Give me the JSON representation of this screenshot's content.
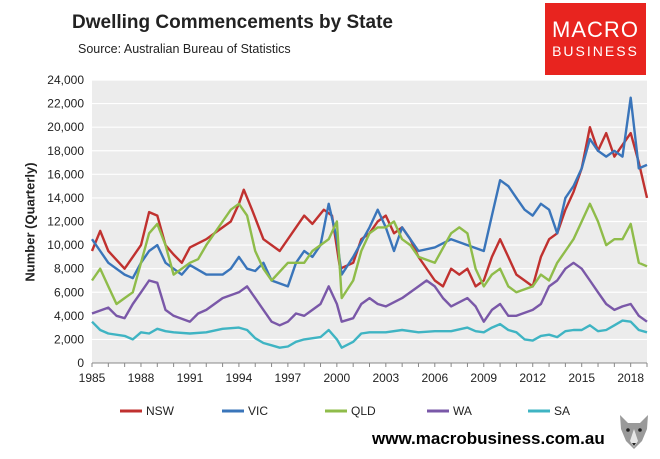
{
  "chart_data": {
    "type": "line",
    "title": "Dwelling Commencements by State",
    "subtitle": "Source:  Australian Bureau of Statistics",
    "ylabel": "Number (Quarterly)",
    "xlabel": "",
    "xlim": [
      1985,
      2019
    ],
    "ylim": [
      0,
      24000
    ],
    "x_ticks": [
      "1985",
      "1988",
      "1991",
      "1994",
      "1997",
      "2000",
      "2003",
      "2006",
      "2009",
      "2012",
      "2015",
      "2018"
    ],
    "y_ticks": [
      "0",
      "2,000",
      "4,000",
      "6,000",
      "8,000",
      "10,000",
      "12,000",
      "14,000",
      "16,000",
      "18,000",
      "20,000",
      "22,000",
      "24,000"
    ],
    "grid": true,
    "legend_position": "bottom",
    "series": [
      {
        "name": "NSW",
        "color": "#c0312f",
        "points": [
          [
            1985,
            9500
          ],
          [
            1985.5,
            11200
          ],
          [
            1986,
            9500
          ],
          [
            1987,
            8000
          ],
          [
            1988,
            10000
          ],
          [
            1988.5,
            12800
          ],
          [
            1989,
            12500
          ],
          [
            1989.5,
            10000
          ],
          [
            1990,
            9200
          ],
          [
            1990.5,
            8500
          ],
          [
            1991,
            9800
          ],
          [
            1992,
            10500
          ],
          [
            1993,
            11500
          ],
          [
            1993.5,
            12000
          ],
          [
            1994,
            13500
          ],
          [
            1994.3,
            14700
          ],
          [
            1994.8,
            13000
          ],
          [
            1995.5,
            10500
          ],
          [
            1996.5,
            9500
          ],
          [
            1997.5,
            11500
          ],
          [
            1998,
            12500
          ],
          [
            1998.5,
            11800
          ],
          [
            1999.2,
            13000
          ],
          [
            1999.7,
            12500
          ],
          [
            2000.2,
            8000
          ],
          [
            2001,
            8500
          ],
          [
            2001.5,
            10500
          ],
          [
            2002,
            11000
          ],
          [
            2002.5,
            12000
          ],
          [
            2003,
            12500
          ],
          [
            2003.5,
            11000
          ],
          [
            2004,
            11500
          ],
          [
            2004.5,
            10500
          ],
          [
            2005,
            9000
          ],
          [
            2006,
            7000
          ],
          [
            2006.5,
            6500
          ],
          [
            2007,
            8000
          ],
          [
            2007.5,
            7500
          ],
          [
            2008,
            8000
          ],
          [
            2008.5,
            6500
          ],
          [
            2009,
            7000
          ],
          [
            2009.5,
            9000
          ],
          [
            2010,
            10500
          ],
          [
            2010.5,
            9000
          ],
          [
            2011,
            7500
          ],
          [
            2011.5,
            7000
          ],
          [
            2012,
            6500
          ],
          [
            2012.5,
            9000
          ],
          [
            2013,
            10500
          ],
          [
            2013.5,
            11000
          ],
          [
            2014,
            13000
          ],
          [
            2014.5,
            14500
          ],
          [
            2015,
            16500
          ],
          [
            2015.5,
            20000
          ],
          [
            2016,
            18000
          ],
          [
            2016.5,
            19500
          ],
          [
            2017,
            17500
          ],
          [
            2017.5,
            18500
          ],
          [
            2018,
            19500
          ],
          [
            2018.5,
            17000
          ],
          [
            2019,
            14000
          ]
        ]
      },
      {
        "name": "VIC",
        "color": "#3a75ba",
        "points": [
          [
            1985,
            10500
          ],
          [
            1985.5,
            9500
          ],
          [
            1986,
            8500
          ],
          [
            1987,
            7500
          ],
          [
            1987.5,
            7200
          ],
          [
            1988,
            8500
          ],
          [
            1988.5,
            9500
          ],
          [
            1989,
            10000
          ],
          [
            1989.5,
            8500
          ],
          [
            1990,
            8000
          ],
          [
            1990.5,
            7500
          ],
          [
            1991,
            8300
          ],
          [
            1992,
            7500
          ],
          [
            1993,
            7500
          ],
          [
            1993.5,
            8000
          ],
          [
            1994,
            9000
          ],
          [
            1994.5,
            8000
          ],
          [
            1995,
            7800
          ],
          [
            1995.5,
            8500
          ],
          [
            1996,
            7000
          ],
          [
            1997,
            6500
          ],
          [
            1997.5,
            8500
          ],
          [
            1998,
            9500
          ],
          [
            1998.5,
            9000
          ],
          [
            1999,
            10000
          ],
          [
            1999.5,
            13500
          ],
          [
            2000,
            10500
          ],
          [
            2000.3,
            7500
          ],
          [
            2001,
            9000
          ],
          [
            2002,
            11500
          ],
          [
            2002.5,
            13000
          ],
          [
            2003,
            11500
          ],
          [
            2003.5,
            9500
          ],
          [
            2004,
            11500
          ],
          [
            2004.5,
            10500
          ],
          [
            2005,
            9500
          ],
          [
            2006,
            9800
          ],
          [
            2007,
            10500
          ],
          [
            2008,
            10000
          ],
          [
            2009,
            9500
          ],
          [
            2009.5,
            12500
          ],
          [
            2010,
            15500
          ],
          [
            2010.5,
            15000
          ],
          [
            2011,
            14000
          ],
          [
            2011.5,
            13000
          ],
          [
            2012,
            12500
          ],
          [
            2012.5,
            13500
          ],
          [
            2013,
            13000
          ],
          [
            2013.5,
            11000
          ],
          [
            2014,
            14000
          ],
          [
            2014.5,
            15000
          ],
          [
            2015,
            16500
          ],
          [
            2015.5,
            19000
          ],
          [
            2016,
            18000
          ],
          [
            2016.5,
            17500
          ],
          [
            2017,
            18000
          ],
          [
            2017.5,
            17500
          ],
          [
            2018,
            22500
          ],
          [
            2018.5,
            16500
          ],
          [
            2019,
            16800
          ]
        ]
      },
      {
        "name": "QLD",
        "color": "#8fbc4a",
        "points": [
          [
            1985,
            7000
          ],
          [
            1985.5,
            8000
          ],
          [
            1986,
            6500
          ],
          [
            1986.5,
            5000
          ],
          [
            1987,
            5500
          ],
          [
            1987.5,
            6000
          ],
          [
            1988,
            8500
          ],
          [
            1988.5,
            11000
          ],
          [
            1989,
            11800
          ],
          [
            1989.5,
            10000
          ],
          [
            1990,
            7500
          ],
          [
            1990.5,
            8000
          ],
          [
            1991,
            8500
          ],
          [
            1991.5,
            8800
          ],
          [
            1992,
            10000
          ],
          [
            1993,
            12000
          ],
          [
            1993.5,
            13000
          ],
          [
            1994,
            13500
          ],
          [
            1994.5,
            12500
          ],
          [
            1995,
            9500
          ],
          [
            1995.5,
            8000
          ],
          [
            1996,
            7000
          ],
          [
            1997,
            8500
          ],
          [
            1998,
            8500
          ],
          [
            1998.5,
            9500
          ],
          [
            1999,
            10000
          ],
          [
            1999.5,
            10500
          ],
          [
            2000,
            12000
          ],
          [
            2000.3,
            5500
          ],
          [
            2001,
            7000
          ],
          [
            2001.5,
            9500
          ],
          [
            2002,
            11000
          ],
          [
            2002.5,
            11500
          ],
          [
            2003,
            11500
          ],
          [
            2003.5,
            12000
          ],
          [
            2004,
            10500
          ],
          [
            2004.5,
            10000
          ],
          [
            2005,
            9000
          ],
          [
            2006,
            8500
          ],
          [
            2007,
            11000
          ],
          [
            2007.5,
            11500
          ],
          [
            2008,
            11000
          ],
          [
            2008.5,
            8000
          ],
          [
            2009,
            6500
          ],
          [
            2009.5,
            7500
          ],
          [
            2010,
            8000
          ],
          [
            2010.5,
            6500
          ],
          [
            2011,
            6000
          ],
          [
            2012,
            6500
          ],
          [
            2012.5,
            7500
          ],
          [
            2013,
            7000
          ],
          [
            2013.5,
            8500
          ],
          [
            2014,
            9500
          ],
          [
            2014.5,
            10500
          ],
          [
            2015,
            12000
          ],
          [
            2015.5,
            13500
          ],
          [
            2016,
            12000
          ],
          [
            2016.5,
            10000
          ],
          [
            2017,
            10500
          ],
          [
            2017.5,
            10500
          ],
          [
            2018,
            11800
          ],
          [
            2018.5,
            8500
          ],
          [
            2019,
            8200
          ]
        ]
      },
      {
        "name": "WA",
        "color": "#7a58a8",
        "points": [
          [
            1985,
            4200
          ],
          [
            1986,
            4700
          ],
          [
            1986.5,
            4000
          ],
          [
            1987,
            3800
          ],
          [
            1987.5,
            5000
          ],
          [
            1988,
            6000
          ],
          [
            1988.5,
            7000
          ],
          [
            1989,
            6800
          ],
          [
            1989.5,
            4500
          ],
          [
            1990,
            4000
          ],
          [
            1991,
            3500
          ],
          [
            1991.5,
            4200
          ],
          [
            1992,
            4500
          ],
          [
            1993,
            5500
          ],
          [
            1994,
            6000
          ],
          [
            1994.5,
            6500
          ],
          [
            1995,
            5500
          ],
          [
            1995.5,
            4500
          ],
          [
            1996,
            3500
          ],
          [
            1996.5,
            3200
          ],
          [
            1997,
            3500
          ],
          [
            1997.5,
            4200
          ],
          [
            1998,
            4000
          ],
          [
            1998.5,
            4500
          ],
          [
            1999,
            5000
          ],
          [
            1999.5,
            6500
          ],
          [
            2000,
            5000
          ],
          [
            2000.3,
            3500
          ],
          [
            2001,
            3800
          ],
          [
            2001.5,
            5000
          ],
          [
            2002,
            5500
          ],
          [
            2002.5,
            5000
          ],
          [
            2003,
            4800
          ],
          [
            2004,
            5500
          ],
          [
            2005,
            6500
          ],
          [
            2005.5,
            7000
          ],
          [
            2006,
            6500
          ],
          [
            2006.5,
            5500
          ],
          [
            2007,
            4800
          ],
          [
            2008,
            5500
          ],
          [
            2008.5,
            4800
          ],
          [
            2009,
            3500
          ],
          [
            2009.5,
            4500
          ],
          [
            2010,
            5000
          ],
          [
            2010.5,
            4000
          ],
          [
            2011,
            4000
          ],
          [
            2012,
            4500
          ],
          [
            2012.5,
            5000
          ],
          [
            2013,
            6500
          ],
          [
            2013.5,
            7000
          ],
          [
            2014,
            8000
          ],
          [
            2014.5,
            8500
          ],
          [
            2015,
            8000
          ],
          [
            2015.5,
            7000
          ],
          [
            2016,
            6000
          ],
          [
            2016.5,
            5000
          ],
          [
            2017,
            4500
          ],
          [
            2017.5,
            4800
          ],
          [
            2018,
            5000
          ],
          [
            2018.5,
            4000
          ],
          [
            2019,
            3500
          ]
        ]
      },
      {
        "name": "SA",
        "color": "#3fb4c3",
        "points": [
          [
            1985,
            3500
          ],
          [
            1985.5,
            2800
          ],
          [
            1986,
            2500
          ],
          [
            1987,
            2300
          ],
          [
            1987.5,
            2000
          ],
          [
            1988,
            2600
          ],
          [
            1988.5,
            2500
          ],
          [
            1989,
            2900
          ],
          [
            1989.5,
            2700
          ],
          [
            1990,
            2600
          ],
          [
            1991,
            2500
          ],
          [
            1992,
            2600
          ],
          [
            1993,
            2900
          ],
          [
            1994,
            3000
          ],
          [
            1994.5,
            2800
          ],
          [
            1995,
            2100
          ],
          [
            1995.5,
            1700
          ],
          [
            1996,
            1500
          ],
          [
            1996.5,
            1300
          ],
          [
            1997,
            1400
          ],
          [
            1997.5,
            1800
          ],
          [
            1998,
            2000
          ],
          [
            1999,
            2200
          ],
          [
            1999.5,
            2800
          ],
          [
            2000,
            2000
          ],
          [
            2000.3,
            1300
          ],
          [
            2001,
            1800
          ],
          [
            2001.5,
            2500
          ],
          [
            2002,
            2600
          ],
          [
            2003,
            2600
          ],
          [
            2004,
            2800
          ],
          [
            2005,
            2600
          ],
          [
            2006,
            2700
          ],
          [
            2007,
            2700
          ],
          [
            2008,
            3000
          ],
          [
            2008.5,
            2700
          ],
          [
            2009,
            2600
          ],
          [
            2009.5,
            3000
          ],
          [
            2010,
            3300
          ],
          [
            2010.5,
            2800
          ],
          [
            2011,
            2600
          ],
          [
            2011.5,
            2000
          ],
          [
            2012,
            1900
          ],
          [
            2012.5,
            2300
          ],
          [
            2013,
            2400
          ],
          [
            2013.5,
            2200
          ],
          [
            2014,
            2700
          ],
          [
            2014.5,
            2800
          ],
          [
            2015,
            2800
          ],
          [
            2015.5,
            3200
          ],
          [
            2016,
            2700
          ],
          [
            2016.5,
            2800
          ],
          [
            2017,
            3200
          ],
          [
            2017.5,
            3600
          ],
          [
            2018,
            3500
          ],
          [
            2018.5,
            2800
          ],
          [
            2019,
            2600
          ]
        ]
      }
    ]
  },
  "logo": {
    "line1": "MACRO",
    "line2": "BUSINESS"
  },
  "footer": {
    "url": "www.macrobusiness.com.au",
    "icon": "fox-icon"
  }
}
